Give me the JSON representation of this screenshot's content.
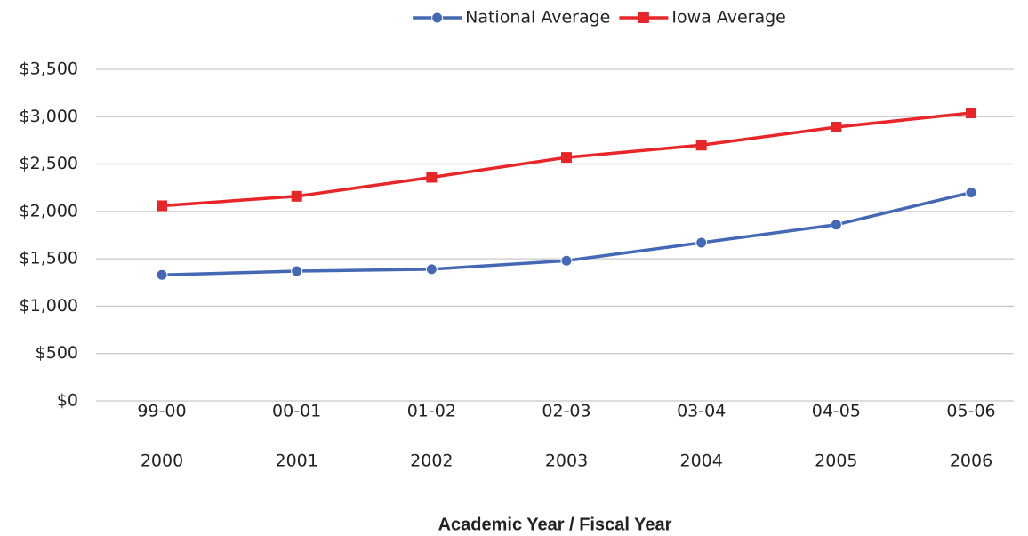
{
  "chart_data": {
    "type": "line",
    "x_axis_label": "Academic Year / Fiscal Year",
    "categories": [
      "99-00",
      "00-01",
      "01-02",
      "02-03",
      "03-04",
      "04-05",
      "05-06"
    ],
    "secondary_categories": [
      "2000",
      "2001",
      "2002",
      "2003",
      "2004",
      "2005",
      "2006"
    ],
    "series": [
      {
        "name": "National Average",
        "color": "#4568b4",
        "marker": "circle",
        "values": [
          1330,
          1370,
          1390,
          1480,
          1670,
          1860,
          2200
        ]
      },
      {
        "name": "Iowa Average",
        "color": "#e8262a",
        "marker": "square",
        "values": [
          2060,
          2160,
          2360,
          2570,
          2700,
          2890,
          3040
        ]
      }
    ],
    "ylim": [
      0,
      3500
    ],
    "yticks": [
      {
        "value": 0,
        "label": "$0"
      },
      {
        "value": 500,
        "label": "$500"
      },
      {
        "value": 1000,
        "label": "$1,000"
      },
      {
        "value": 1500,
        "label": "$1,500"
      },
      {
        "value": 2000,
        "label": "$2,000"
      },
      {
        "value": 2500,
        "label": "$2,500"
      },
      {
        "value": 3000,
        "label": "$3,000"
      },
      {
        "value": 3500,
        "label": "$3,500"
      }
    ],
    "grid": true,
    "legend": "top"
  }
}
